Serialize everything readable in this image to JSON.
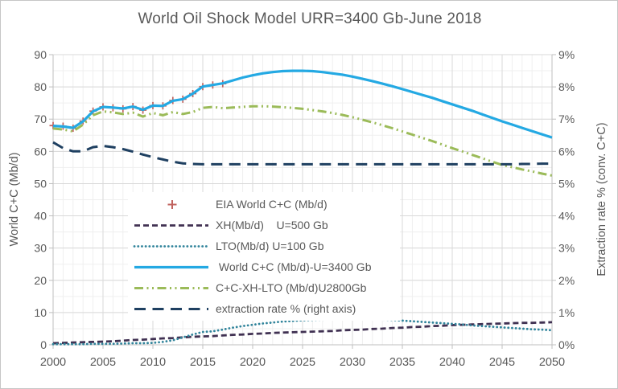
{
  "chart_data": {
    "type": "line",
    "title": "World Oil Shock Model URR=3400 Gb-June 2018",
    "xlabel": "",
    "ylabel_left": "World C+C (Mb/d)",
    "ylabel_right": "Extraction rate % (conv. C+C)",
    "x_range": [
      2000,
      2050
    ],
    "y_left_range": [
      0,
      90
    ],
    "y_right_range": [
      0,
      9
    ],
    "x_ticks": [
      2000,
      2005,
      2010,
      2015,
      2020,
      2025,
      2030,
      2035,
      2040,
      2045,
      2050
    ],
    "y_left_ticks": [
      0,
      10,
      20,
      30,
      40,
      50,
      60,
      70,
      80,
      90
    ],
    "y_right_ticks": [
      "0%",
      "1%",
      "2%",
      "3%",
      "4%",
      "5%",
      "6%",
      "7%",
      "8%",
      "9%"
    ],
    "grid": {
      "major_x_step_years": 5,
      "minor_x_step_years": 1,
      "major_y_step": 10,
      "minor_y_step": 5,
      "legend_position": "inside-center-left"
    },
    "colors": {
      "text": "#595959",
      "major_grid": "#d9d9d9",
      "minor_grid": "#efefef",
      "axis_line": "#bfbfbf"
    },
    "series": [
      {
        "id": "eia",
        "label": "EIA World C+C (Mb/d)",
        "axis": "left",
        "style": "plus-marker",
        "color": "#c0625e",
        "start_year": 2000,
        "values": [
          68.0,
          67.8,
          67.2,
          69.4,
          72.5,
          73.8,
          73.5,
          73.2,
          73.9,
          72.8,
          74.2,
          74.1,
          75.8,
          76.2,
          77.9,
          80.1,
          80.6,
          81.0
        ]
      },
      {
        "id": "xh",
        "label": "XH(Mb/d)    U=500 Gb",
        "axis": "left",
        "style": "dash",
        "color": "#403152",
        "start_year": 2000,
        "values": [
          0.5,
          0.6,
          0.7,
          0.8,
          0.9,
          1.0,
          1.1,
          1.3,
          1.5,
          1.6,
          1.8,
          2.0,
          2.1,
          2.3,
          2.5,
          2.6,
          2.7,
          2.9,
          3.1,
          3.2,
          3.4,
          3.5,
          3.7,
          3.8,
          3.9,
          4.0,
          4.1,
          4.2,
          4.3,
          4.5,
          4.6,
          4.7,
          4.9,
          5.0,
          5.2,
          5.3,
          5.5,
          5.6,
          5.8,
          5.9,
          6.1,
          6.2,
          6.3,
          6.4,
          6.5,
          6.6,
          6.7,
          6.8,
          6.8,
          6.9,
          7.0
        ]
      },
      {
        "id": "lto",
        "label": "LTO(Mb/d) U=100 Gb",
        "axis": "left",
        "style": "dot",
        "color": "#31849b",
        "start_year": 2000,
        "values": [
          0.2,
          0.2,
          0.2,
          0.2,
          0.3,
          0.3,
          0.3,
          0.4,
          0.5,
          0.5,
          0.6,
          0.9,
          1.4,
          2.3,
          3.2,
          4.0,
          4.2,
          4.7,
          5.3,
          5.8,
          6.2,
          6.6,
          6.9,
          7.2,
          7.4,
          7.6,
          7.7,
          7.8,
          7.9,
          8.0,
          8.0,
          8.0,
          7.9,
          7.8,
          7.7,
          7.5,
          7.3,
          7.1,
          6.9,
          6.7,
          6.5,
          6.3,
          6.0,
          5.8,
          5.6,
          5.4,
          5.2,
          5.0,
          4.8,
          4.7,
          4.5
        ]
      },
      {
        "id": "world",
        "label": " World C+C (Mb/d)-U=3400 Gb",
        "axis": "left",
        "style": "solid",
        "color": "#24a9e3",
        "start_year": 2000,
        "values": [
          67.9,
          67.7,
          67.3,
          69.3,
          72.4,
          73.8,
          73.6,
          73.3,
          73.9,
          72.9,
          74.2,
          74.1,
          75.7,
          76.2,
          77.9,
          80.1,
          80.6,
          81.1,
          82.0,
          82.9,
          83.6,
          84.2,
          84.6,
          84.9,
          85.0,
          85.0,
          84.9,
          84.6,
          84.2,
          83.8,
          83.2,
          82.5,
          81.8,
          81.0,
          80.2,
          79.3,
          78.4,
          77.5,
          76.6,
          75.6,
          74.6,
          73.6,
          72.6,
          71.5,
          70.4,
          69.3,
          68.3,
          67.3,
          66.3,
          65.3,
          64.3
        ]
      },
      {
        "id": "ccx",
        "label": "C+C-XH-LTO (Mb/d)U2800Gb",
        "axis": "left",
        "style": "dash-dot-dot",
        "color": "#9bbb59",
        "start_year": 2000,
        "values": [
          67.1,
          66.8,
          66.2,
          68.3,
          71.2,
          72.4,
          72.1,
          71.6,
          72.0,
          70.8,
          71.9,
          71.2,
          72.2,
          71.6,
          72.2,
          73.5,
          73.8,
          73.4,
          73.6,
          73.8,
          74.0,
          74.0,
          73.9,
          73.7,
          73.5,
          73.2,
          72.8,
          72.4,
          71.9,
          71.3,
          70.6,
          69.8,
          69.0,
          68.1,
          67.2,
          66.2,
          65.2,
          64.2,
          63.2,
          62.1,
          61.0,
          60.0,
          58.9,
          57.9,
          56.8,
          55.8,
          55.1,
          54.4,
          53.8,
          53.1,
          52.5
        ]
      },
      {
        "id": "ext",
        "label": "extraction rate % (right axis)",
        "axis": "right",
        "style": "long-dash",
        "color": "#1f4061",
        "start_year": 2000,
        "values": [
          6.28,
          6.1,
          6.0,
          6.0,
          6.13,
          6.17,
          6.13,
          6.07,
          5.99,
          5.9,
          5.82,
          5.75,
          5.68,
          5.63,
          5.61,
          5.6,
          5.6,
          5.6,
          5.6,
          5.6,
          5.6,
          5.6,
          5.6,
          5.6,
          5.6,
          5.6,
          5.6,
          5.6,
          5.6,
          5.6,
          5.6,
          5.6,
          5.6,
          5.6,
          5.6,
          5.6,
          5.6,
          5.6,
          5.6,
          5.6,
          5.6,
          5.6,
          5.6,
          5.6,
          5.6,
          5.6,
          5.6,
          5.61,
          5.61,
          5.62,
          5.62
        ]
      }
    ]
  }
}
